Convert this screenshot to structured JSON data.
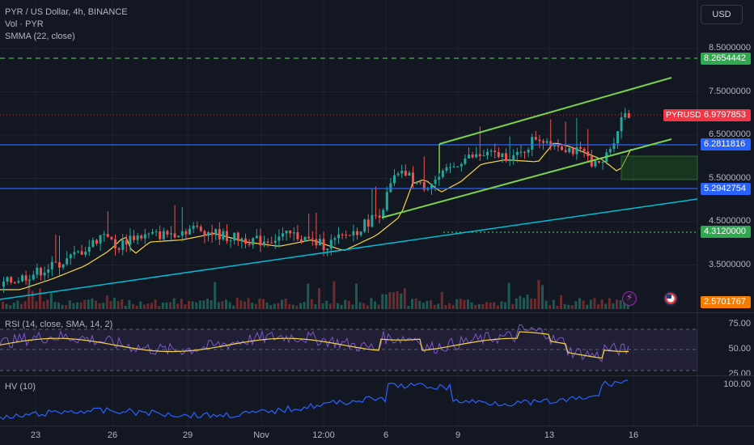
{
  "header": {
    "symbol_title": "PYR / US Dollar, 4h, BINANCE",
    "volume_label": "Vol · PYR",
    "smma_label": "SMMA (22, close)"
  },
  "toolbar": {
    "currency_label": "USD"
  },
  "price_scale": {
    "ticks": [
      "8.5000000",
      "7.5000000",
      "6.5000000",
      "5.5000000",
      "4.5000000",
      "3.5000000"
    ],
    "labels": {
      "level_top": "8.2654442",
      "current_price": "6.9797853",
      "level_upper": "6.2811816",
      "level_lower": "5.2942754",
      "level_dotted": "4.3120000",
      "volume": "2.5701767"
    },
    "symbol_tag": "PYRUSD"
  },
  "rsi_pane": {
    "label": "RSI (14, close, SMA, 14, 2)",
    "ticks": [
      "75.00",
      "50.00",
      "25.00"
    ]
  },
  "hv_pane": {
    "label": "HV (10)",
    "ticks": [
      "100.00"
    ]
  },
  "time_axis": {
    "labels": [
      "23",
      "26",
      "29",
      "Nov",
      "12:00",
      "6",
      "9",
      "13",
      "16"
    ]
  },
  "colors": {
    "background": "#131722",
    "up": "#26a69a",
    "down": "#ef5350",
    "smma": "#f5d547",
    "channel": "#7bd14f",
    "level_line": "#2962ff",
    "trend_line": "#00bcd4",
    "rsi": "#7e57c2",
    "hv": "#2962ff"
  },
  "icons": [
    "lightning-bolt-icon",
    "us-flag-icon"
  ]
}
